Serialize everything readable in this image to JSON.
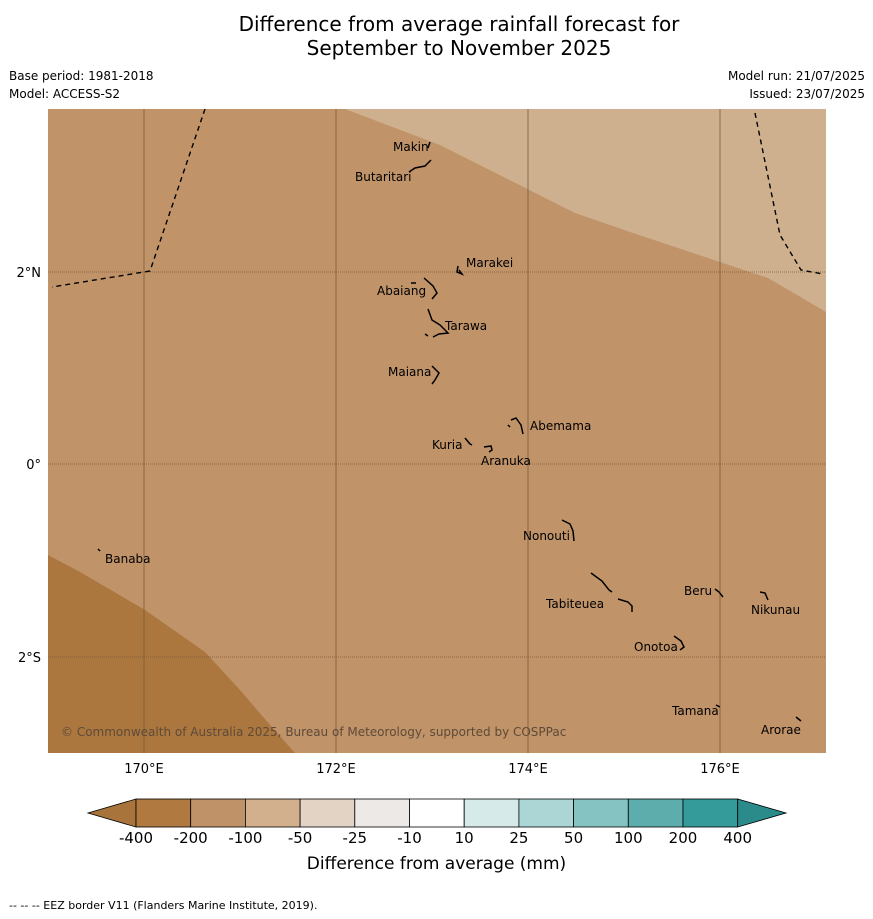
{
  "title_line1": "Difference from average rainfall forecast for",
  "title_line2": "September to November 2025",
  "meta_left": [
    "Base period: 1981-2018",
    "Model: ACCESS-S2"
  ],
  "meta_right": [
    "Model run: 21/07/2025",
    "Issued: 23/07/2025"
  ],
  "lon_ticks": [
    "170°E",
    "172°E",
    "174°E",
    "176°E"
  ],
  "lat_ticks": [
    "2°N",
    "0°",
    "2°S"
  ],
  "copyright": "© Commonwealth of Australia 2025, Bureau of Meteorology, supported by COSPPac",
  "islands": [
    "Makin",
    "Butaritari",
    "Marakei",
    "Abaiang",
    "Tarawa",
    "Maiana",
    "Abemama",
    "Kuria",
    "Aranuka",
    "Nonouti",
    "Banaba",
    "Tabiteuea",
    "Beru",
    "Nikunau",
    "Onotoa",
    "Tamana",
    "Arorae"
  ],
  "colorbar": {
    "label": "Difference from average (mm)",
    "ticks": [
      "-400",
      "-200",
      "-100",
      "-50",
      "-25",
      "-10",
      "10",
      "25",
      "50",
      "100",
      "200",
      "400"
    ],
    "colors": [
      "#a8743c",
      "#b0793f",
      "#c09268",
      "#d2b08e",
      "#e3d3c4",
      "#ece9e6",
      "#ffffff",
      "#d6eaea",
      "#acd5d5",
      "#85c2c2",
      "#5eadad",
      "#349a9a",
      "#2b8b8b"
    ]
  },
  "map_colors": {
    "-400_-200": "#ab773f",
    "-200_-100": "#c09369",
    "-100_-50": "#cfb08e"
  },
  "footnote": "--  --  -- EEZ border V11 (Flanders Marine Institute, 2019)."
}
